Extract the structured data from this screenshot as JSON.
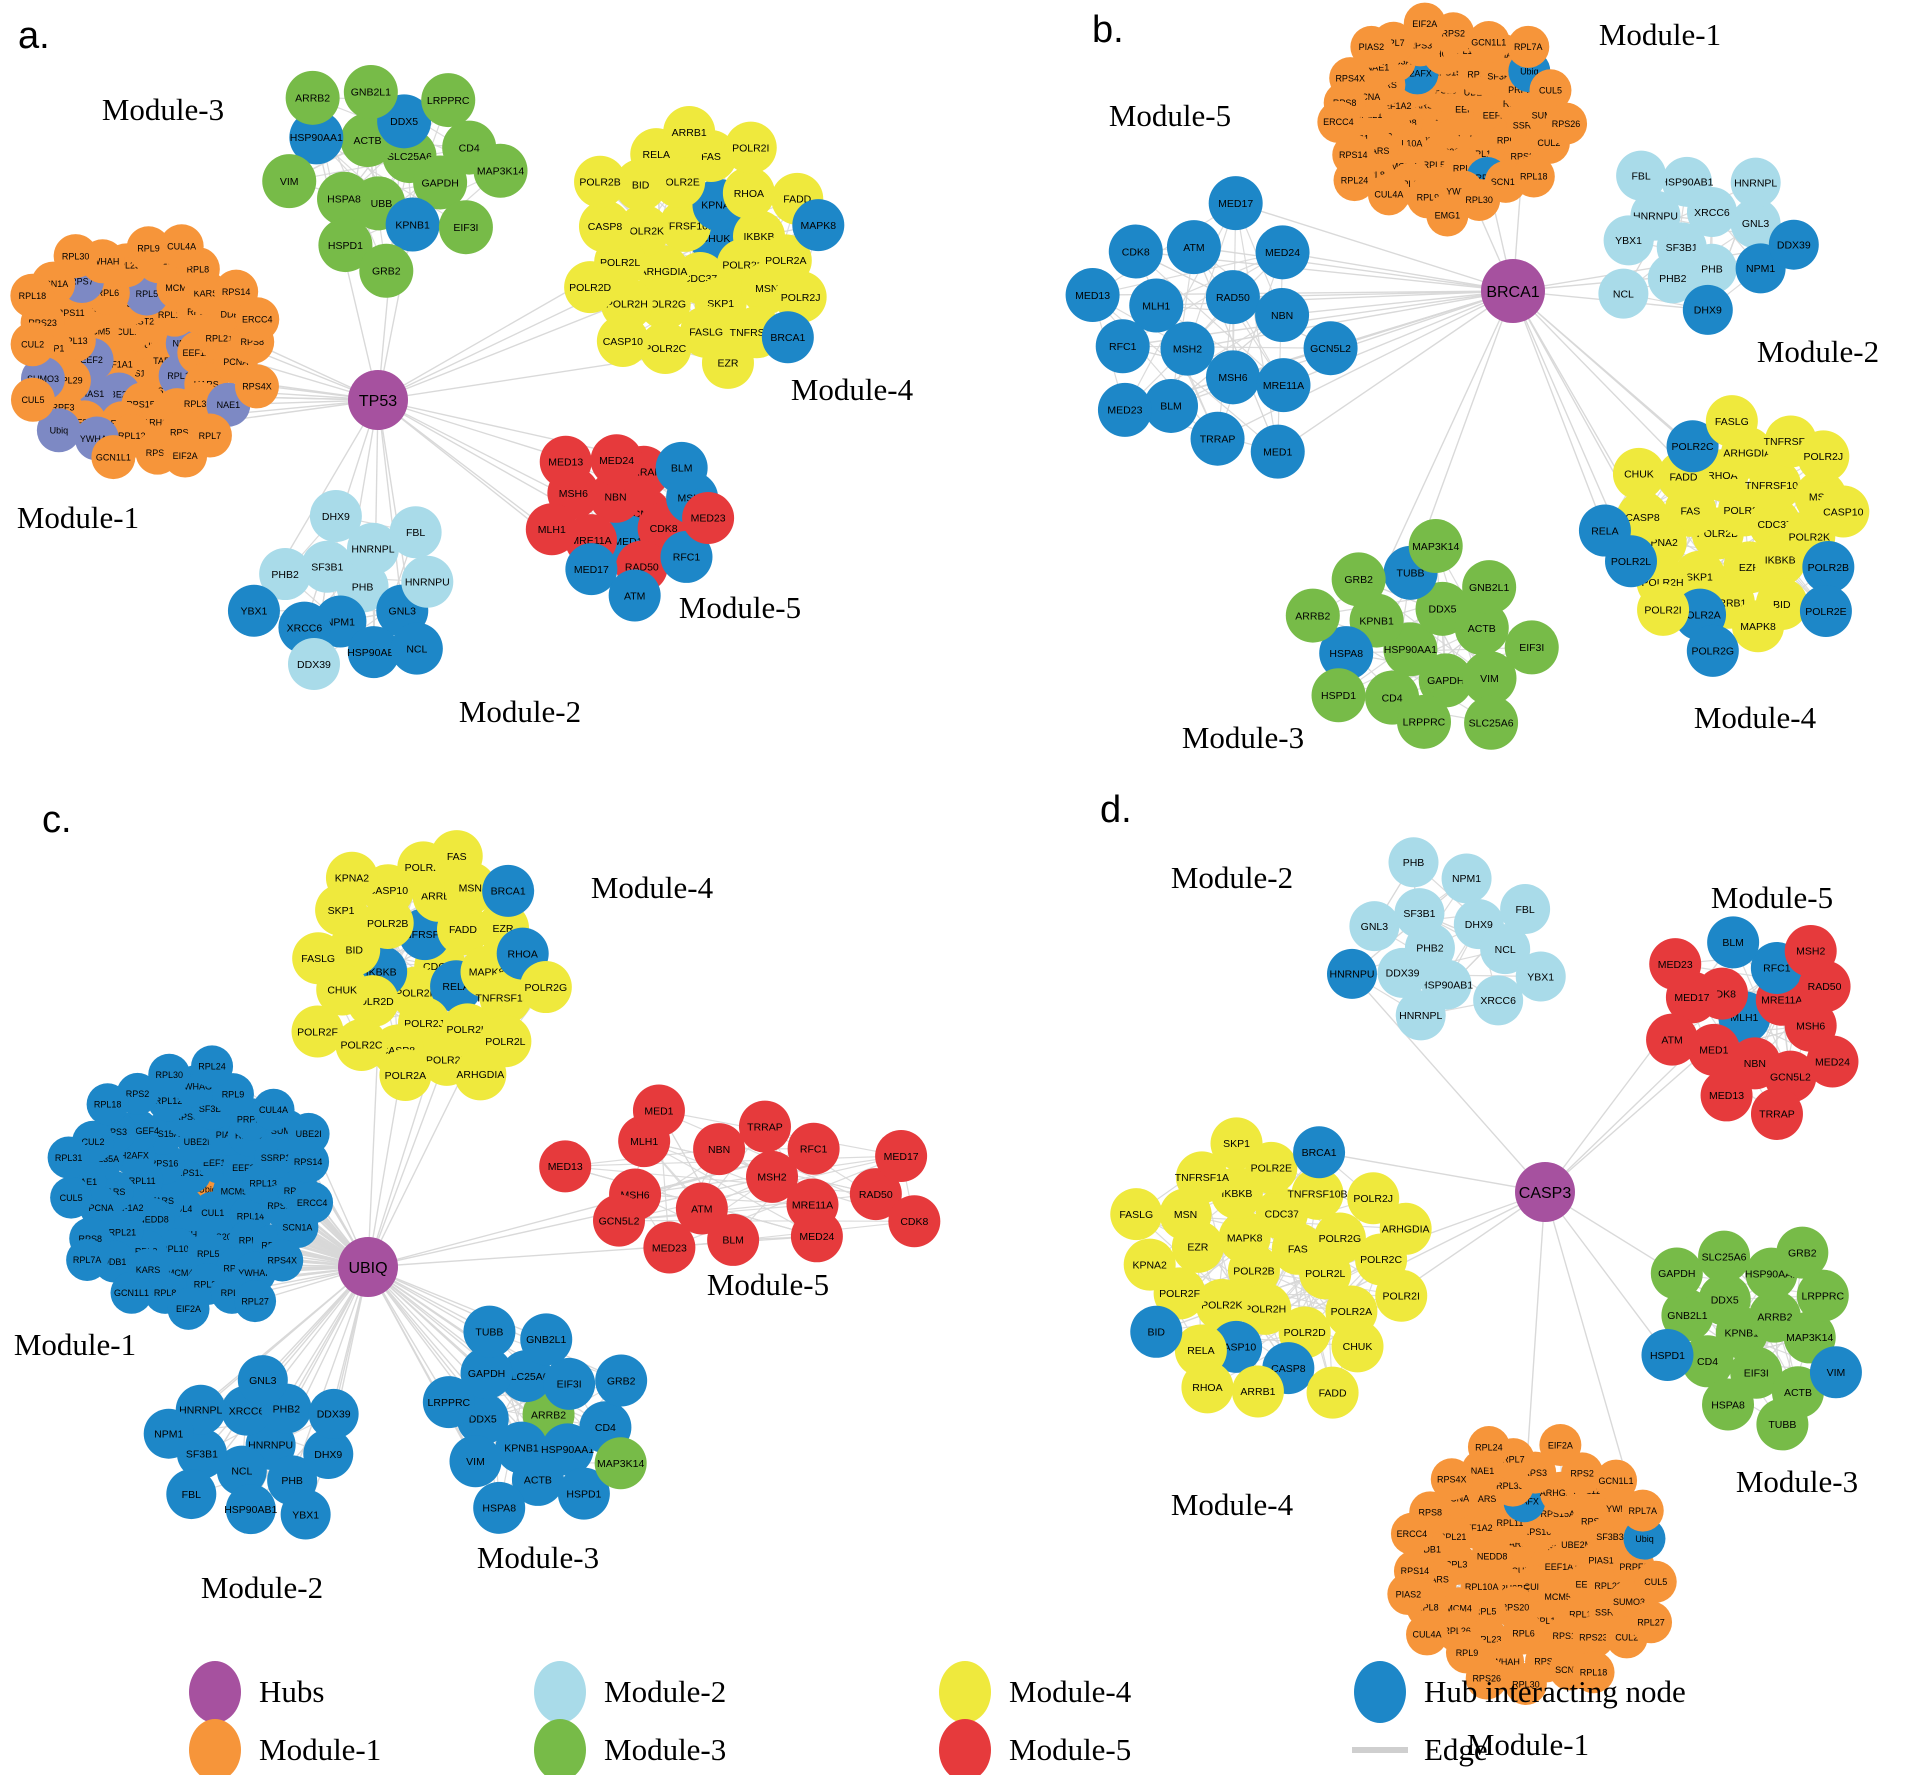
{
  "colors": {
    "purple": "#a6519f",
    "orange": "#f6953a",
    "lightblue": "#a9dbe9",
    "green": "#77bb48",
    "yellow": "#efe93d",
    "red": "#e63a3c",
    "blue": "#1d87c8",
    "periwinkle": "#7d89c4",
    "edge": "#d8d8d8",
    "text": "#000000"
  },
  "shared": {
    "module1_genes": [
      "CUL4B",
      "RPS13",
      "CUL1",
      "TARS",
      "EEF1A1",
      "HIST2H2BE",
      "RPS16",
      "MCM5",
      "NEDD8",
      "UBE2M",
      "RPS20",
      "RPL11",
      "EEF2",
      "RPL10A",
      "RPS15A",
      "RPL14",
      "EEF1A2",
      "PIAS1",
      "RPL5",
      "H2AFX",
      "RPL13",
      "RPL3",
      "RPS6",
      "RPL6",
      "HARS",
      "RPL29",
      "MCM4",
      "ARHGEF4",
      "RPS11",
      "RPL21",
      "SF3B3",
      "RPL23",
      "RPL35A",
      "SSRP1",
      "KARS",
      "RPL12",
      "RPS7",
      "PCNA",
      "PRPF3",
      "RPL26",
      "RPS3",
      "RPS23",
      "DDB1",
      "YWHAG",
      "YWHAH",
      "NAE1",
      "SUMO3",
      "RPL8",
      "RPS2",
      "SCN1A",
      "RPS8",
      "Ubiq",
      "RPL9",
      "RPL7",
      "CUL2",
      "RPS14",
      "GCN1L1",
      "RPL30",
      "RPS4X",
      "CUL5",
      "CUL4A",
      "EIF2A",
      "RPL18",
      "ERCC4"
    ]
  },
  "panels": [
    {
      "id": "a",
      "letter": "a.",
      "hub": {
        "name": "TP53"
      },
      "modules": [
        {
          "key": "m3",
          "title": "Module-3",
          "default_color": "green",
          "nodes": [
            "SLC25A6",
            "TUBB",
            "ACTB",
            "GAPDH",
            "HSPA8",
            "DDX5",
            "KPNB1",
            "HSP90AA1",
            "CD4",
            "HSPD1",
            "GNB2L1",
            "EIF3I",
            "VIM",
            "LRPPRC",
            "GRB2",
            "ARRB2",
            "MAP3K14"
          ],
          "accents": {
            "DDX5": "blue",
            "KPNB1": "blue",
            "HSP90AA1": "blue"
          }
        },
        {
          "key": "m4",
          "title": "Module-4",
          "default_color": "yellow",
          "nodes": [
            "CHUK",
            "CDC37",
            "TNFRSF10B",
            "POLR2F",
            "ARHGDIA",
            "KPNA2",
            "SKP1",
            "POLR2K",
            "IKBKB",
            "POLR2G",
            "POLR2E",
            "MSN",
            "POLR2L",
            "RHOA",
            "FASLG",
            "BID",
            "POLR2A",
            "POLR2H",
            "FAS",
            "TNFRSF1A",
            "CASP8",
            "FADD",
            "POLR2C",
            "RELA",
            "POLR2J",
            "POLR2D",
            "POLR2I",
            "EZR",
            "POLR2B",
            "MAPK8",
            "CASP10",
            "ARRB1",
            "BRCA1"
          ],
          "accents": {
            "KPNA2": "blue",
            "CHUK": "blue",
            "MAPK8": "blue",
            "BRCA1": "blue"
          }
        },
        {
          "key": "m1",
          "title": "Module-1",
          "default_color": "orange",
          "nodes_ref": "module1_genes",
          "accents": {
            "NEDD8": "periwinkle",
            "UBE2M": "periwinkle",
            "RPL11": "periwinkle",
            "EEF2": "periwinkle",
            "RPL5": "periwinkle",
            "PIAS1": "periwinkle",
            "RPS7": "periwinkle",
            "NAE1": "periwinkle",
            "YWHAG": "periwinkle",
            "Ubiq": "periwinkle",
            "SUMO3": "periwinkle"
          }
        },
        {
          "key": "m2",
          "title": "Module-2",
          "default_color": "lightblue",
          "nodes": [
            "PHB",
            "NPM1",
            "SF3B1",
            "GNL3",
            "XRCC6",
            "HNRNPL",
            "HSP90AB1",
            "PHB2",
            "HNRNPU",
            "DDX39",
            "DHX9",
            "NCL",
            "YBX1",
            "FBL"
          ],
          "accents": {
            "XRCC6": "blue",
            "NPM1": "blue",
            "HSP90AB1": "blue",
            "GNL3": "blue",
            "NCL": "blue",
            "YBX1": "blue"
          }
        },
        {
          "key": "m5",
          "title": "Module-5",
          "default_color": "red",
          "nodes": [
            "GCN5L2",
            "MED1",
            "NBN",
            "CDK8",
            "MRE11A",
            "TRRAP",
            "RAD50",
            "MSH6",
            "MSH2",
            "MED17",
            "MED24",
            "RFC1",
            "MLH1",
            "BLM",
            "ATM",
            "MED13",
            "MED23"
          ],
          "accents": {
            "MSH2": "blue",
            "MED17": "blue",
            "MED1": "blue",
            "RFC1": "blue",
            "BLM": "blue",
            "ATM": "blue"
          }
        }
      ]
    },
    {
      "id": "b",
      "letter": "b.",
      "hub": {
        "name": "BRCA1"
      },
      "modules": [
        {
          "key": "m5",
          "title": "Module-5",
          "default_color": "blue",
          "nodes": [
            "MSH2",
            "RAD50",
            "MSH6",
            "MLH1",
            "NBN",
            "BLM",
            "ATM",
            "MRE11A",
            "RFC1",
            "MED24",
            "TRRAP",
            "CDK8",
            "GCN5L2",
            "MED23",
            "MED17",
            "MED1",
            "MED13"
          ],
          "accents": {}
        },
        {
          "key": "m1",
          "title": "Module-1",
          "default_color": "orange",
          "nodes_ref": "module1_genes",
          "extra_nodes": [
            "RPL7A",
            "EMG1",
            "PIAS2",
            "RPS26",
            "RPL24"
          ],
          "accents": {
            "H2AFX": "blue",
            "Ubiq": "blue",
            "RPS7": "blue"
          }
        },
        {
          "key": "m2",
          "title": "Module-2",
          "default_color": "lightblue",
          "nodes": [
            "SF3B1",
            "XRCC6",
            "PHB",
            "HNRNPU",
            "GNL3",
            "PHB2",
            "HSP90AB1",
            "NPM1",
            "YBX1",
            "HNRNPL",
            "DHX9",
            "FBL",
            "DDX39",
            "NCL"
          ],
          "accents": {
            "NPM1": "blue",
            "DHX9": "blue",
            "DDX39": "blue"
          }
        },
        {
          "key": "m3",
          "title": "Module-3",
          "default_color": "green",
          "nodes": [
            "HSP90AA1",
            "DDX5",
            "GAPDH",
            "KPNB1",
            "ACTB",
            "CD4",
            "TUBB",
            "VIM",
            "HSPA8",
            "GNB2L1",
            "LRPPRC",
            "GRB2",
            "EIF3I",
            "HSPD1",
            "MAP3K14",
            "SLC25A6",
            "ARRB2"
          ],
          "accents": {
            "TUBB": "blue",
            "HSPA8": "blue"
          }
        },
        {
          "key": "m4",
          "title": "Module-4",
          "default_color": "yellow",
          "nodes": [
            "POLR2D",
            "POLR2F",
            "EZR",
            "FAS",
            "CDC37",
            "SKP1",
            "RHOA",
            "IKBKB",
            "KPNA2",
            "TNFRSF10B",
            "ARRB1",
            "FADD",
            "POLR2K",
            "POLR2H",
            "ARHGDIA",
            "BID",
            "CASP8",
            "MSN",
            "POLR2A",
            "POLR2C",
            "POLR2B",
            "POLR2L",
            "TNFRSF1A",
            "MAPK8",
            "CHUK",
            "CASP10",
            "POLR2I",
            "FASLG",
            "POLR2E",
            "RELA",
            "POLR2J",
            "POLR2G"
          ],
          "accents": {
            "POLR2A": "blue",
            "POLR2C": "blue",
            "POLR2B": "blue",
            "POLR2L": "blue",
            "POLR2E": "blue",
            "RELA": "blue",
            "POLR2G": "blue"
          }
        }
      ]
    },
    {
      "id": "c",
      "letter": "c.",
      "hub": {
        "name": "UBIQ"
      },
      "modules": [
        {
          "key": "m4",
          "title": "Module-4",
          "default_color": "yellow",
          "nodes": [
            "CDC37",
            "POLR2K",
            "TNFRSF1A",
            "RELA",
            "IKBKB",
            "FADD",
            "POLR2J",
            "POLR2B",
            "MAPK8",
            "POLR2D",
            "ARRB1",
            "POLR2H",
            "BID",
            "EZR",
            "CASP8",
            "CASP10",
            "TNFRSF10B",
            "CHUK",
            "MSN",
            "POLR2E",
            "SKP1",
            "RHOA",
            "POLR2C",
            "POLR2I",
            "POLR2L",
            "FASLG",
            "BRCA1",
            "POLR2A",
            "KPNA2",
            "POLR2G",
            "POLR2F",
            "FAS",
            "ARHGDIA"
          ],
          "accents": {
            "BRCA1": "blue",
            "IKBKB": "blue",
            "TNFRSF1A": "blue",
            "RELA": "blue",
            "RHOA": "blue"
          }
        },
        {
          "key": "m1",
          "title": "Module-1",
          "default_color": "blue",
          "nodes_ref": "module1_genes",
          "extra_nodes": [
            "RPL7A",
            "RPL24",
            "RPL27",
            "RPL31",
            "UBE2I"
          ],
          "center_first": [
            "Ubiq"
          ],
          "accents": {
            "Ubiq": "orange"
          }
        },
        {
          "key": "m5",
          "title": "Module-5",
          "default_color": "red",
          "nodes": [
            "MSH2",
            "ATM",
            "NBN",
            "MRE11A",
            "MSH6",
            "RFC1",
            "BLM",
            "MLH1",
            "RAD50",
            "GCN5L2",
            "TRRAP",
            "MED24",
            "MED13",
            "MED17",
            "MED23",
            "MED1",
            "CDK8"
          ],
          "accents": {}
        },
        {
          "key": "m2",
          "title": "Module-2",
          "default_color": "blue",
          "nodes": [
            "HNRNPU",
            "NCL",
            "XRCC6",
            "PHB",
            "SF3B1",
            "PHB2",
            "HSP90AB1",
            "HNRNPL",
            "DHX9",
            "FBL",
            "GNL3",
            "YBX1",
            "NPM1",
            "DDX39"
          ],
          "accents": {}
        },
        {
          "key": "m3",
          "title": "Module-3",
          "default_color": "blue",
          "nodes": [
            "ARRB2",
            "KPNB1",
            "SLC25A6",
            "HSP90AA1",
            "DDX5",
            "EIF3I",
            "ACTB",
            "GAPDH",
            "CD4",
            "VIM",
            "GNB2L1",
            "HSPD1",
            "LRPPRC",
            "GRB2",
            "HSPA8",
            "TUBB",
            "MAP3K14"
          ],
          "accents": {
            "ARRB2": "green",
            "MAP3K14": "green"
          }
        }
      ]
    },
    {
      "id": "d",
      "letter": "d.",
      "hub": {
        "name": "CASP3"
      },
      "modules": [
        {
          "key": "m2",
          "title": "Module-2",
          "default_color": "lightblue",
          "nodes": [
            "PHB2",
            "DHX9",
            "HSP90AB1",
            "SF3B1",
            "NCL",
            "DDX39",
            "NPM1",
            "XRCC6",
            "GNL3",
            "FBL",
            "HNRNPL",
            "PHB",
            "YBX1",
            "HNRNPU"
          ],
          "accents": {
            "HNRNPU": "blue"
          }
        },
        {
          "key": "m5",
          "title": "Module-5",
          "default_color": "red",
          "nodes": [
            "MLH1",
            "MRE11A",
            "NBN",
            "CDK8",
            "MSH6",
            "MED1",
            "RFC1",
            "GCN5L2",
            "MED17",
            "RAD50",
            "MED13",
            "BLM",
            "MED24",
            "ATM",
            "MSH2",
            "TRRAP",
            "MED23"
          ],
          "accents": {
            "RFC1": "blue",
            "MLH1": "blue",
            "BLM": "blue"
          }
        },
        {
          "key": "m4",
          "title": "Module-4",
          "default_color": "yellow",
          "nodes": [
            "POLR2B",
            "FAS",
            "POLR2H",
            "MAPK8",
            "POLR2L",
            "POLR2K",
            "CDC37",
            "POLR2D",
            "EZR",
            "POLR2G",
            "CASP10",
            "IKBKB",
            "POLR2A",
            "POLR2F",
            "TNFRSF10B",
            "CASP8",
            "MSN",
            "POLR2C",
            "RELA",
            "POLR2E",
            "CHUK",
            "KPNA2",
            "POLR2J",
            "ARRB1",
            "TNFRSF1A",
            "POLR2I",
            "BID",
            "BRCA1",
            "FADD",
            "FASLG",
            "ARHGDIA",
            "RHOA",
            "SKP1"
          ],
          "accents": {
            "BRCA1": "blue",
            "CASP10": "blue",
            "CASP8": "blue",
            "BID": "blue"
          }
        },
        {
          "key": "m3",
          "title": "Module-3",
          "default_color": "green",
          "nodes": [
            "KPNB1",
            "ARRB2",
            "EIF3I",
            "DDX5",
            "MAP3K14",
            "CD4",
            "HSP90AA1",
            "ACTB",
            "GNB2L1",
            "LRPPRC",
            "HSPA8",
            "SLC25A6",
            "VIM",
            "HSPD1",
            "GRB2",
            "TUBB",
            "GAPDH"
          ],
          "accents": {
            "VIM": "blue",
            "HSPD1": "blue"
          }
        },
        {
          "key": "m1",
          "title": "Module-1",
          "default_color": "orange",
          "nodes_ref": "module1_genes",
          "extra_nodes": [
            "RPL7A",
            "RPS26",
            "RPL24",
            "RPL27",
            "PIAS2"
          ],
          "accents": {
            "H2AFX": "blue",
            "Ubiq": "blue"
          }
        }
      ]
    }
  ],
  "legend": {
    "items": [
      {
        "label": "Hubs",
        "color": "purple",
        "shape": "ellipse"
      },
      {
        "label": "Module-1",
        "color": "orange",
        "shape": "ellipse"
      },
      {
        "label": "Module-2",
        "color": "lightblue",
        "shape": "ellipse"
      },
      {
        "label": "Module-3",
        "color": "green",
        "shape": "ellipse"
      },
      {
        "label": "Module-4",
        "color": "yellow",
        "shape": "ellipse"
      },
      {
        "label": "Module-5",
        "color": "red",
        "shape": "ellipse"
      },
      {
        "label": "Hub interacting node",
        "color": "blue",
        "shape": "ellipse"
      },
      {
        "label": "Edge",
        "color": "edge",
        "shape": "line"
      }
    ]
  }
}
